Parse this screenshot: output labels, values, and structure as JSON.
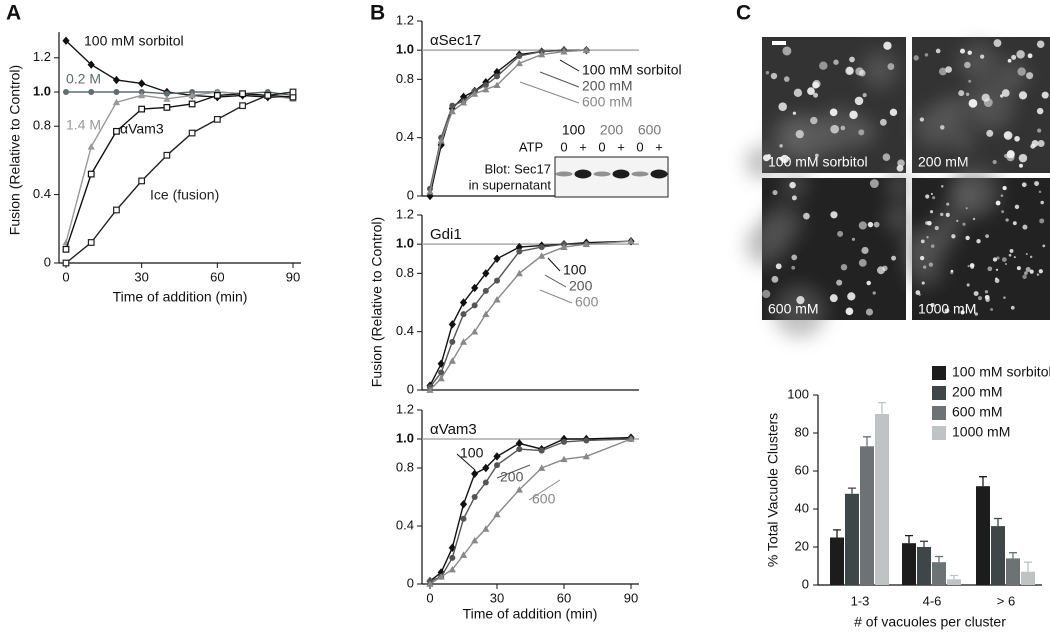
{
  "panel_labels": [
    "A",
    "B",
    "C"
  ],
  "chart_data": [
    {
      "type": "line",
      "xlabel": "Time of addition (min)",
      "ylabel": "Fusion (Relative to Control)",
      "x": [
        0,
        10,
        20,
        30,
        40,
        50,
        60,
        70,
        80,
        90
      ],
      "series": [
        {
          "name": "100 mM sorbitol",
          "color": "#111111",
          "marker": "diamond",
          "values": [
            1.3,
            1.16,
            1.07,
            1.05,
            1.0,
            0.98,
            0.97,
            0.98,
            0.97,
            0.97
          ]
        },
        {
          "name": "0.2 M",
          "color": "#5f6d6d",
          "marker": "circle",
          "values": [
            1.0,
            1.0,
            1.0,
            1.0,
            0.99,
            1.0,
            1.0,
            0.99,
            1.0,
            0.98
          ]
        },
        {
          "name": "1.4 M",
          "color": "#999999",
          "marker": "triangle",
          "values": [
            0.12,
            0.68,
            0.94,
            0.98,
            0.96,
            0.98,
            1.0,
            0.99,
            0.98,
            0.96
          ]
        },
        {
          "name": "αVam3",
          "color": "#111111",
          "marker": "square-open",
          "values": [
            0.08,
            0.52,
            0.77,
            0.9,
            0.91,
            0.93,
            0.98,
            0.99,
            0.98,
            0.97
          ]
        },
        {
          "name": "Ice (fusion)",
          "color": "#222222",
          "marker": "square-open",
          "values": [
            0.0,
            0.12,
            0.31,
            0.48,
            0.63,
            0.76,
            0.84,
            0.92,
            0.98,
            1.0
          ]
        }
      ],
      "xlim": [
        0,
        90
      ],
      "xticks": [
        0,
        30,
        60,
        90
      ],
      "ylim": [
        0,
        1.35
      ],
      "yticks": [
        0,
        0.4,
        0.8,
        {
          "value": 1,
          "label": "1.0"
        },
        1.2
      ]
    },
    {
      "type": "line",
      "title": "αSec17",
      "x": [
        0,
        5,
        10,
        15,
        20,
        25,
        30,
        40,
        50,
        60,
        70,
        90
      ],
      "series": [
        {
          "name": "100 mM sorbitol",
          "color": "#111111",
          "marker": "diamond",
          "values": [
            0.0,
            0.35,
            0.6,
            0.68,
            0.72,
            0.78,
            0.85,
            0.97,
            0.99,
            1.0,
            1.0,
            null
          ]
        },
        {
          "name": "200 mM",
          "color": "#555555",
          "marker": "circle",
          "values": [
            0.05,
            0.4,
            0.62,
            0.65,
            0.72,
            0.76,
            0.82,
            0.96,
            0.99,
            1.0,
            1.0,
            null
          ]
        },
        {
          "name": "600 mM",
          "color": "#888888",
          "marker": "triangle",
          "values": [
            0.03,
            0.38,
            0.58,
            0.64,
            0.7,
            0.73,
            0.76,
            0.91,
            0.97,
            0.99,
            1.0,
            null
          ]
        }
      ],
      "xlim": [
        0,
        90
      ],
      "ylim": [
        0,
        1.2
      ],
      "yticks": [
        0,
        0.4,
        0.8,
        {
          "value": 1,
          "label": "1.0"
        },
        1.2
      ],
      "hline": 1
    },
    {
      "type": "line",
      "title": "Gdi1",
      "ylabel": "Fusion (Relative to Control)",
      "x": [
        0,
        5,
        10,
        15,
        20,
        25,
        30,
        40,
        50,
        60,
        70,
        90
      ],
      "series": [
        {
          "name": "100",
          "color": "#111111",
          "marker": "diamond",
          "values": [
            0.03,
            0.18,
            0.45,
            0.6,
            0.7,
            0.8,
            0.9,
            0.98,
            0.99,
            1.0,
            1.01,
            1.02
          ]
        },
        {
          "name": "200",
          "color": "#555555",
          "marker": "circle",
          "values": [
            0.02,
            0.12,
            0.33,
            0.52,
            0.58,
            0.68,
            0.75,
            0.95,
            0.98,
            1.0,
            1.0,
            null
          ]
        },
        {
          "name": "600",
          "color": "#888888",
          "marker": "triangle",
          "values": [
            0.0,
            0.08,
            0.2,
            0.33,
            0.4,
            0.52,
            0.62,
            0.8,
            0.92,
            0.98,
            1.0,
            1.02
          ]
        }
      ],
      "xlim": [
        0,
        90
      ],
      "ylim": [
        0,
        1.2
      ],
      "yticks": [
        0,
        0.4,
        0.8,
        {
          "value": 1,
          "label": "1.0"
        },
        1.2
      ],
      "hline": 1
    },
    {
      "type": "line",
      "title": "αVam3",
      "xlabel": "Time of addition (min)",
      "x": [
        0,
        5,
        10,
        15,
        20,
        25,
        30,
        40,
        50,
        60,
        70,
        90
      ],
      "series": [
        {
          "name": "100",
          "color": "#111111",
          "marker": "diamond",
          "values": [
            0.02,
            0.08,
            0.25,
            0.55,
            0.76,
            0.8,
            0.88,
            0.97,
            0.93,
            1.0,
            1.0,
            1.01
          ]
        },
        {
          "name": "200",
          "color": "#555555",
          "marker": "circle",
          "values": [
            0.02,
            0.05,
            0.18,
            0.45,
            0.6,
            0.7,
            0.82,
            0.93,
            0.92,
            0.98,
            0.99,
            1.0
          ]
        },
        {
          "name": "600",
          "color": "#888888",
          "marker": "triangle",
          "values": [
            0.0,
            0.05,
            0.1,
            0.2,
            0.3,
            0.38,
            0.48,
            0.65,
            0.8,
            0.86,
            0.88,
            1.0
          ]
        }
      ],
      "xlim": [
        0,
        90
      ],
      "xticks": [
        0,
        30,
        60,
        90
      ],
      "ylim": [
        0,
        1.2
      ],
      "yticks": [
        0,
        0.4,
        0.8,
        {
          "value": 1,
          "label": "1.0"
        },
        1.2
      ],
      "hline": 1
    },
    {
      "type": "bar",
      "xlabel": "# of vacuoles per cluster",
      "ylabel": "% Total Vacuole Clusters",
      "categories": [
        "1-3",
        "4-6",
        "> 6"
      ],
      "series": [
        {
          "name": "100 mM sorbitol",
          "color": "#1c1c1c",
          "values": [
            25,
            22,
            52
          ],
          "errors": [
            4,
            4,
            5
          ]
        },
        {
          "name": "200 mM",
          "color": "#3f4648",
          "values": [
            48,
            20,
            31
          ],
          "errors": [
            3,
            3,
            4
          ]
        },
        {
          "name": "600 mM",
          "color": "#6d7374",
          "values": [
            73,
            12,
            14
          ],
          "errors": [
            5,
            3,
            3
          ]
        },
        {
          "name": "1000 mM",
          "color": "#bfc3c4",
          "values": [
            90,
            3,
            7
          ],
          "errors": [
            6,
            2,
            5
          ]
        }
      ],
      "ylim": [
        0,
        100
      ],
      "yticks": [
        0,
        20,
        40,
        60,
        80,
        100
      ]
    }
  ],
  "inset_blot": {
    "groups": [
      "100",
      "200",
      "600"
    ],
    "atp_label": "ATP",
    "lanes": [
      "0",
      "+",
      "0",
      "+",
      "0",
      "+"
    ],
    "caption": [
      "Blot: Sec17",
      "in supernatant"
    ]
  },
  "micrographs": [
    "100 mM sorbitol",
    "200 mM",
    "600 mM",
    "1000 mM"
  ]
}
